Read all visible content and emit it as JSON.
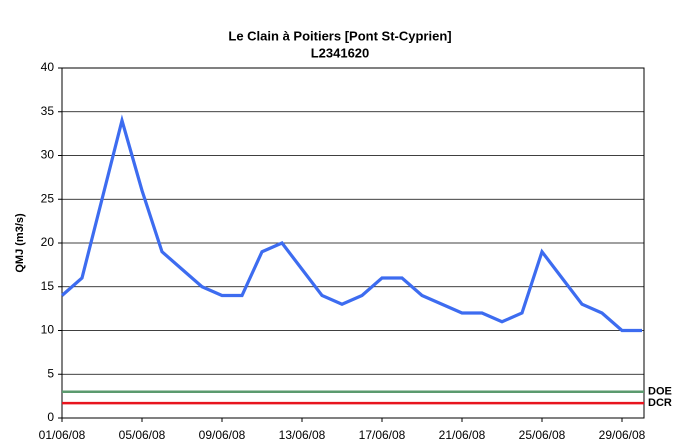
{
  "chart_data": {
    "type": "line",
    "title": "Le Clain à Poitiers [Pont St-Cyprien]",
    "subtitle": "L2341620",
    "y_label": "QMJ (m3/s)",
    "categories": [
      "01/06/08",
      null,
      null,
      null,
      "05/06/08",
      null,
      null,
      null,
      "09/06/08",
      null,
      null,
      null,
      "13/06/08",
      null,
      null,
      null,
      "17/06/08",
      null,
      null,
      null,
      "21/06/08",
      null,
      null,
      null,
      "25/06/08",
      null,
      null,
      null,
      "29/06/08",
      null
    ],
    "values": [
      14,
      16,
      25,
      34,
      26,
      19,
      17,
      15,
      14,
      14,
      19,
      20,
      17,
      14,
      13,
      14,
      16,
      16,
      14,
      13,
      12,
      12,
      11,
      12,
      19,
      16,
      13,
      12,
      10,
      10
    ],
    "color": "#3d6cf0",
    "threshold_lines": [
      {
        "name": "DOE",
        "value": 3,
        "color": "#5b9a6e"
      },
      {
        "name": "DCR",
        "value": 1.7,
        "color": "#e8141e"
      }
    ],
    "ylim": [
      0,
      40
    ],
    "yticks": [
      0,
      5,
      10,
      15,
      20,
      25,
      30,
      35,
      40
    ],
    "grid": true
  }
}
